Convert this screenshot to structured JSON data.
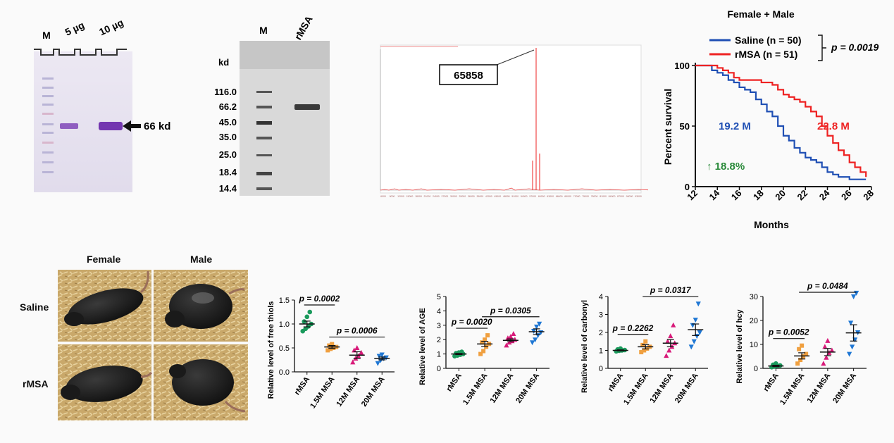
{
  "gel1": {
    "lanes": [
      "M",
      "5 µg",
      "10 µg"
    ],
    "arrow_label": "66 kd"
  },
  "gel2": {
    "lanes": [
      "M",
      "rMSA"
    ],
    "unit": "kd",
    "markers": [
      "116.0",
      "66.2",
      "45.0",
      "35.0",
      "25.0",
      "18.4",
      "14.4"
    ]
  },
  "ms": {
    "peak_label": "65858",
    "x_ticks": [
      "6000",
      "9000",
      "12000",
      "15000",
      "18000",
      "21000",
      "24000",
      "27000",
      "30000",
      "33000",
      "36000",
      "39000",
      "42000",
      "45000",
      "48000",
      "51000",
      "54000",
      "57000",
      "60000",
      "63000",
      "66000",
      "69000",
      "72000",
      "75000",
      "78000",
      "81000",
      "84000",
      "87000",
      "90000",
      "93000"
    ]
  },
  "photos": {
    "col_labels": [
      "Female",
      "Male"
    ],
    "row_labels": [
      "Saline",
      "rMSA"
    ],
    "colors": {
      "fur": "#161616",
      "bedding": "#c9a86a"
    }
  },
  "chart_data": [
    {
      "type": "line",
      "title": "Female + Male",
      "xlabel": "Months",
      "ylabel": "Percent survival",
      "xlim": [
        12,
        28
      ],
      "ylim": [
        0,
        100
      ],
      "x_ticks": [
        "12",
        "14",
        "16",
        "18",
        "20",
        "22",
        "24",
        "26",
        "28"
      ],
      "y_ticks": [
        "0",
        "50",
        "100"
      ],
      "legend_position": "top-right",
      "p_value": "p = 0.0019",
      "annotations": [
        "19.2 M",
        "22.8 M",
        "↑ 18.8%"
      ],
      "series": [
        {
          "name": "Saline (n = 50)",
          "color": "#1f4fb4",
          "x": [
            12,
            13,
            13.5,
            14,
            14.5,
            15,
            15.5,
            16,
            16.5,
            17,
            17.5,
            18,
            18.5,
            19,
            19.5,
            20,
            20.5,
            21,
            21.5,
            22,
            22.5,
            23,
            23.5,
            24,
            24.5,
            25,
            26,
            27,
            27.5
          ],
          "y": [
            100,
            100,
            96,
            94,
            92,
            88,
            86,
            82,
            80,
            78,
            72,
            68,
            62,
            58,
            50,
            42,
            38,
            32,
            28,
            24,
            22,
            20,
            16,
            12,
            10,
            8,
            6,
            6,
            6
          ]
        },
        {
          "name": "rMSA (n = 51)",
          "color": "#ee2222",
          "x": [
            12,
            13.5,
            14,
            14.5,
            15,
            15.5,
            16,
            17,
            18,
            19,
            19.5,
            20,
            20.5,
            21,
            21.5,
            22,
            22.5,
            23,
            23.5,
            24,
            24.5,
            25,
            25.5,
            26,
            26.5,
            27,
            27.5
          ],
          "y": [
            100,
            100,
            98,
            96,
            94,
            90,
            88,
            88,
            86,
            84,
            80,
            76,
            74,
            72,
            70,
            66,
            62,
            58,
            50,
            42,
            36,
            30,
            26,
            20,
            16,
            12,
            8
          ]
        }
      ]
    },
    {
      "type": "scatter",
      "ylabel": "Relative level of free thiols",
      "ylim": [
        0,
        1.5
      ],
      "y_ticks": [
        "0.0",
        "0.5",
        "1.0",
        "1.5"
      ],
      "categories": [
        "rMSA",
        "1.5M MSA",
        "12M MSA",
        "20M MSA"
      ],
      "colors": [
        "#1a9a5c",
        "#f0a040",
        "#d81b7a",
        "#1f77d4"
      ],
      "markers": [
        "circle",
        "square",
        "triangle",
        "triangle-down"
      ],
      "points": [
        [
          0.85,
          0.9,
          0.95,
          1.0,
          1.05,
          1.15,
          1.25
        ],
        [
          0.45,
          0.48,
          0.5,
          0.52,
          0.55,
          0.58
        ],
        [
          0.2,
          0.28,
          0.33,
          0.4,
          0.45,
          0.5
        ],
        [
          0.18,
          0.24,
          0.28,
          0.3,
          0.33,
          0.36
        ]
      ],
      "mean": [
        1.0,
        0.52,
        0.35,
        0.28
      ],
      "sem": [
        0.06,
        0.03,
        0.07,
        0.03
      ],
      "comparisons": [
        {
          "from": 0,
          "to": 1,
          "label": "p = 0.0002"
        },
        {
          "from": 1,
          "to": 3,
          "label": "p = 0.0006"
        }
      ]
    },
    {
      "type": "scatter",
      "ylabel": "Relative level of AGE",
      "ylim": [
        0,
        5
      ],
      "y_ticks": [
        "0",
        "1",
        "2",
        "3",
        "4",
        "5"
      ],
      "categories": [
        "rMSA",
        "1.5M MSA",
        "12M MSA",
        "20M MSA"
      ],
      "colors": [
        "#1a9a5c",
        "#f0a040",
        "#d81b7a",
        "#1f77d4"
      ],
      "markers": [
        "circle",
        "square",
        "triangle",
        "triangle-down"
      ],
      "points": [
        [
          0.85,
          0.9,
          0.95,
          1.0,
          1.05,
          1.1,
          1.15
        ],
        [
          1.0,
          1.2,
          1.5,
          1.7,
          1.8,
          2.0,
          2.3
        ],
        [
          1.6,
          1.8,
          1.9,
          2.0,
          2.1,
          2.2,
          2.4
        ],
        [
          1.8,
          2.0,
          2.3,
          2.5,
          2.6,
          2.9,
          3.1
        ]
      ],
      "mean": [
        1.0,
        1.7,
        1.95,
        2.55
      ],
      "sem": [
        0.04,
        0.18,
        0.1,
        0.2
      ],
      "comparisons": [
        {
          "from": 0,
          "to": 1,
          "label": "p = 0.0020"
        },
        {
          "from": 1,
          "to": 3,
          "label": "p = 0.0305"
        }
      ]
    },
    {
      "type": "scatter",
      "ylabel": "Relative level of carbonyl",
      "ylim": [
        0,
        4
      ],
      "y_ticks": [
        "0",
        "1",
        "2",
        "3",
        "4"
      ],
      "categories": [
        "rMSA",
        "1.5M MSA",
        "12M MSA",
        "20M MSA"
      ],
      "colors": [
        "#1a9a5c",
        "#f0a040",
        "#d81b7a",
        "#1f77d4"
      ],
      "markers": [
        "circle",
        "square",
        "triangle",
        "triangle-down"
      ],
      "points": [
        [
          0.95,
          0.98,
          1.0,
          1.02,
          1.05,
          1.1
        ],
        [
          0.9,
          1.0,
          1.1,
          1.2,
          1.3,
          1.5
        ],
        [
          0.7,
          1.0,
          1.2,
          1.4,
          1.5,
          1.8,
          2.4
        ],
        [
          1.2,
          1.5,
          1.8,
          2.0,
          2.4,
          2.7,
          3.6
        ]
      ],
      "mean": [
        1.0,
        1.2,
        1.4,
        2.15
      ],
      "sem": [
        0.03,
        0.12,
        0.2,
        0.32
      ],
      "comparisons": [
        {
          "from": 0,
          "to": 1,
          "label": "p = 0.2262"
        },
        {
          "from": 1,
          "to": 3,
          "label": "p = 0.0317"
        }
      ]
    },
    {
      "type": "scatter",
      "ylabel": "Relative level of  hcy",
      "ylim": [
        0,
        30
      ],
      "y_ticks": [
        "0",
        "10",
        "20",
        "30"
      ],
      "categories": [
        "rMSA",
        "1.5M MSA",
        "12M MSA",
        "20M MSA"
      ],
      "colors": [
        "#1a9a5c",
        "#f0a040",
        "#d81b7a",
        "#1f77d4"
      ],
      "markers": [
        "circle",
        "square",
        "triangle",
        "triangle-down"
      ],
      "points": [
        [
          0.5,
          0.8,
          1.0,
          1.2,
          1.5,
          2.0
        ],
        [
          2.0,
          3.5,
          5.0,
          6.0,
          8.0,
          9.5
        ],
        [
          2.0,
          4.5,
          6.5,
          7.5,
          9.0,
          11.5
        ],
        [
          6.0,
          9.0,
          12.0,
          15.0,
          19.0,
          30.0,
          31.5
        ]
      ],
      "mean": [
        1.0,
        5.2,
        6.8,
        14.8
      ],
      "sem": [
        0.3,
        1.3,
        1.5,
        3.4
      ],
      "comparisons": [
        {
          "from": 0,
          "to": 1,
          "label": "p = 0.0052"
        },
        {
          "from": 1,
          "to": 3,
          "label": "p = 0.0484"
        }
      ]
    }
  ]
}
